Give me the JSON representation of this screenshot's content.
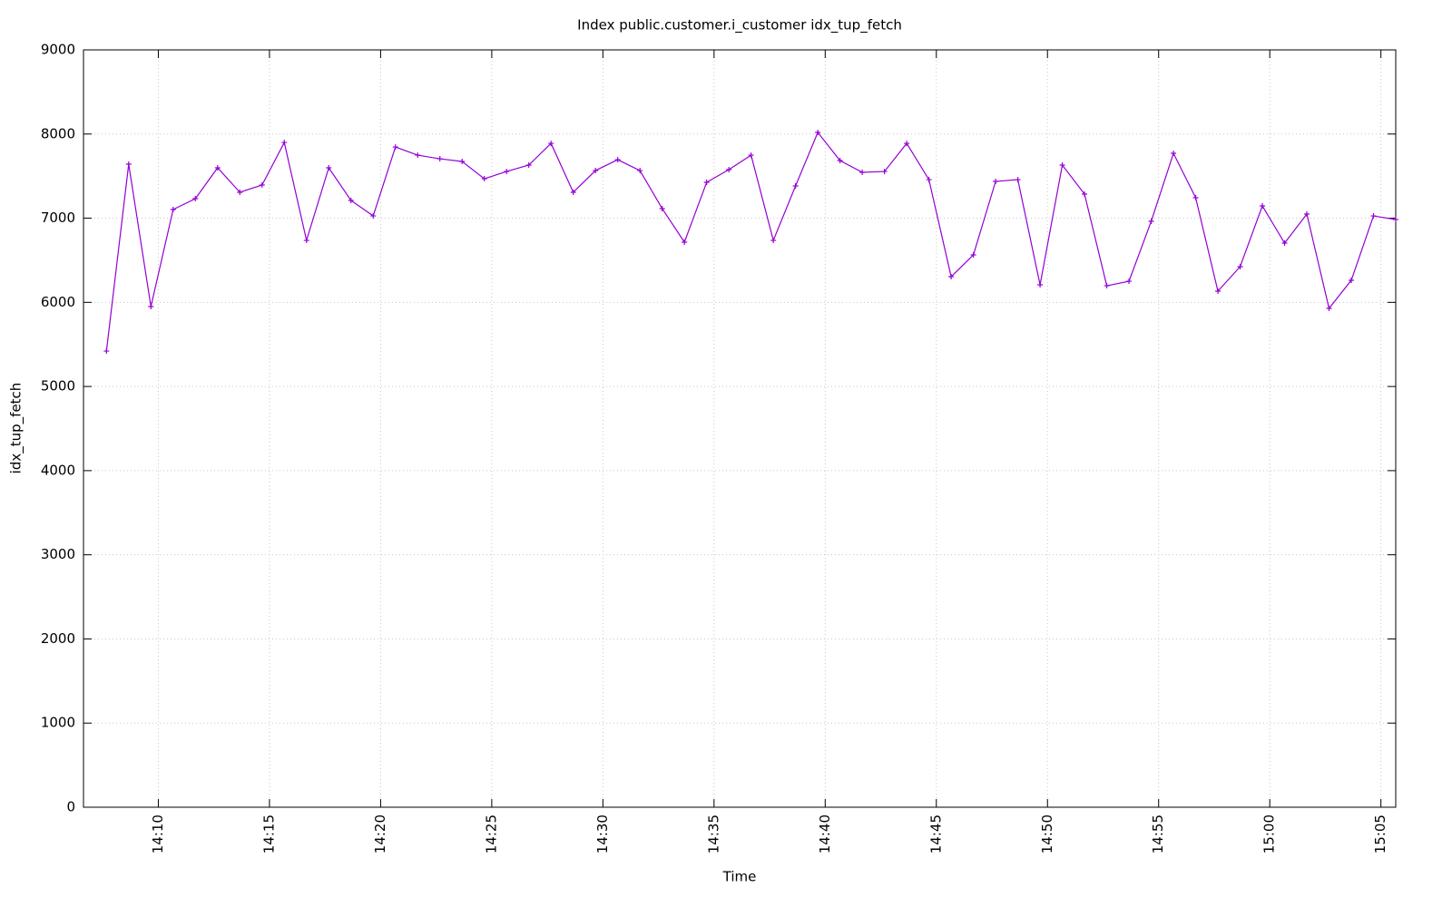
{
  "chart_data": {
    "type": "line",
    "title": "Index public.customer.i_customer idx_tup_fetch",
    "xlabel": "Time",
    "ylabel": "idx_tup_fetch",
    "x": [
      "14:07:40",
      "14:08:40",
      "14:09:40",
      "14:10:40",
      "14:11:40",
      "14:12:40",
      "14:13:40",
      "14:14:40",
      "14:15:40",
      "14:16:40",
      "14:17:40",
      "14:18:40",
      "14:19:40",
      "14:20:40",
      "14:21:40",
      "14:22:40",
      "14:23:40",
      "14:24:40",
      "14:25:40",
      "14:26:40",
      "14:27:40",
      "14:28:40",
      "14:29:40",
      "14:30:40",
      "14:31:40",
      "14:32:40",
      "14:33:40",
      "14:34:40",
      "14:35:40",
      "14:36:40",
      "14:37:40",
      "14:38:40",
      "14:39:40",
      "14:40:40",
      "14:41:40",
      "14:42:40",
      "14:43:40",
      "14:44:40",
      "14:45:40",
      "14:46:40",
      "14:47:40",
      "14:48:40",
      "14:49:40",
      "14:50:40",
      "14:51:40",
      "14:52:40",
      "14:53:40",
      "14:54:40",
      "14:55:40",
      "14:56:40",
      "14:57:40",
      "14:58:40",
      "14:59:40",
      "15:00:40",
      "15:01:40",
      "15:02:40",
      "15:03:40",
      "15:04:40",
      "15:05:40"
    ],
    "series": [
      {
        "color": "#9400d3",
        "values": [
          5421,
          7642,
          5950,
          7103,
          7232,
          7599,
          7308,
          7394,
          7900,
          6736,
          7599,
          7211,
          7027,
          7846,
          7749,
          7706,
          7674,
          7469,
          7555,
          7631,
          7889,
          7308,
          7566,
          7695,
          7566,
          7114,
          6715,
          7426,
          7577,
          7749,
          6736,
          7383,
          8019,
          7685,
          7545,
          7555,
          7889,
          7458,
          6305,
          6564,
          7437,
          7458,
          6208,
          7631,
          7286,
          6197,
          6251,
          6963,
          7771,
          7243,
          6133,
          6424,
          7146,
          6704,
          7049,
          5928,
          6262,
          7027,
          6984
        ]
      }
    ],
    "xlim": [
      "14:06:38",
      "15:05:40"
    ],
    "xticks": [
      {
        "value": "14:10:00",
        "label": "14:10"
      },
      {
        "value": "14:15:00",
        "label": "14:15"
      },
      {
        "value": "14:20:00",
        "label": "14:20"
      },
      {
        "value": "14:25:00",
        "label": "14:25"
      },
      {
        "value": "14:30:00",
        "label": "14:30"
      },
      {
        "value": "14:35:00",
        "label": "14:35"
      },
      {
        "value": "14:40:00",
        "label": "14:40"
      },
      {
        "value": "14:45:00",
        "label": "14:45"
      },
      {
        "value": "14:50:00",
        "label": "14:50"
      },
      {
        "value": "14:55:00",
        "label": "14:55"
      },
      {
        "value": "15:00:00",
        "label": "15:00"
      },
      {
        "value": "15:05:00",
        "label": "15:05"
      }
    ],
    "ylim": [
      0,
      9000
    ],
    "yticks": [
      0,
      1000,
      2000,
      3000,
      4000,
      5000,
      6000,
      7000,
      8000,
      9000
    ],
    "grid": true
  }
}
